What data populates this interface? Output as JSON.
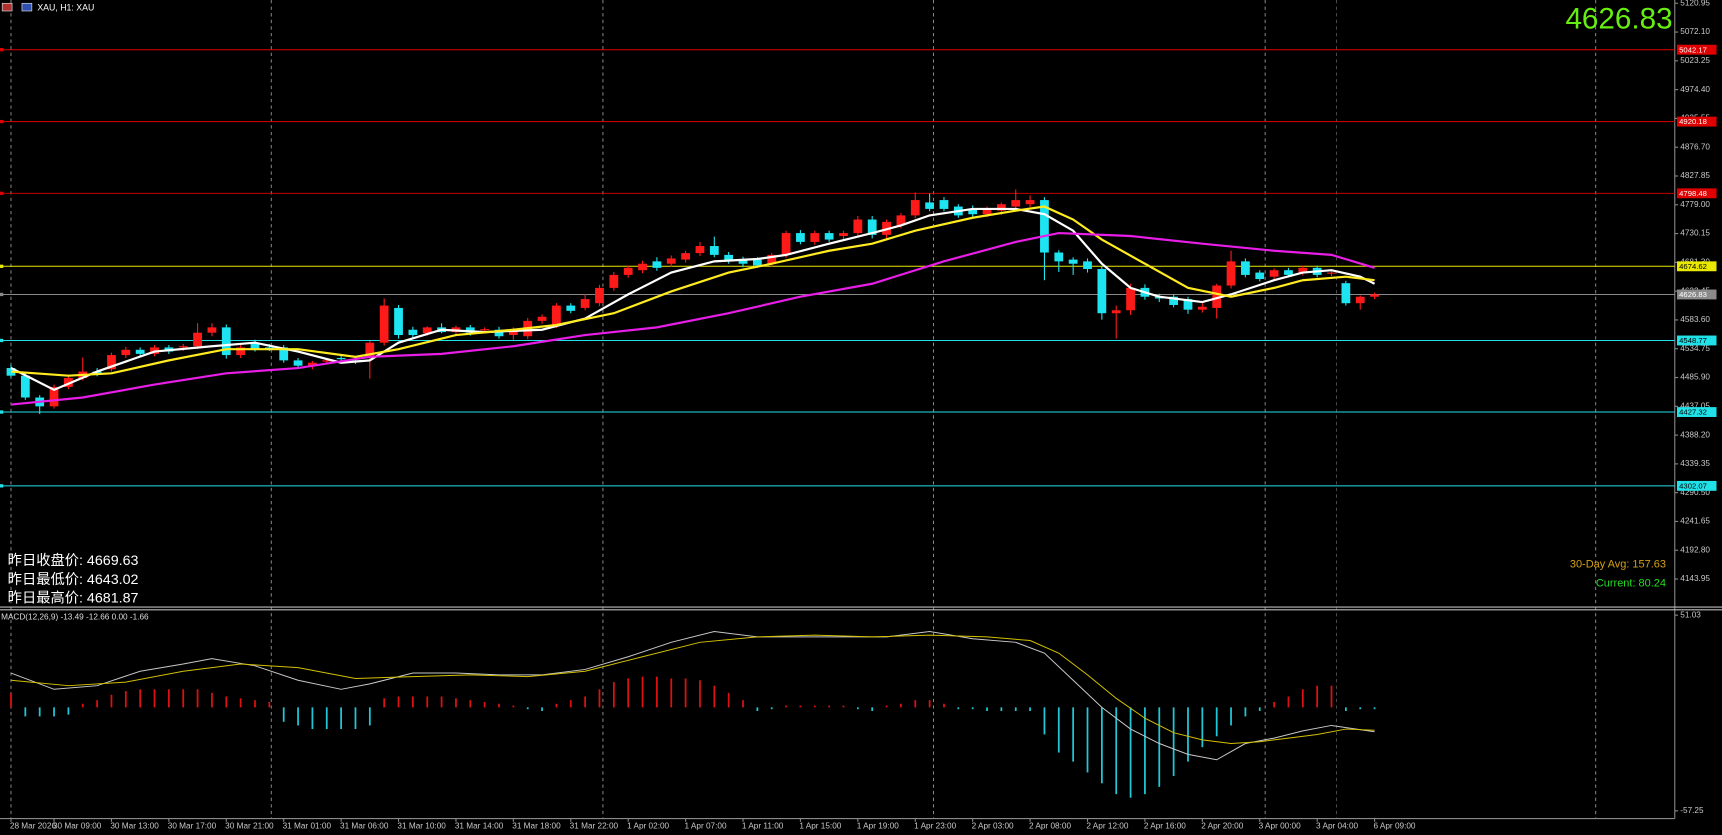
{
  "chart_data": [
    {
      "type": "candlestick",
      "title": "XAU, H1: XAU",
      "last_price": 4626.83,
      "up_color": "#ff1a1a",
      "down_color": "#1ee3f0",
      "categories": [
        "28 Mar 2026",
        null,
        null,
        "30 Mar 09:00",
        null,
        null,
        null,
        "30 Mar 13:00",
        null,
        null,
        null,
        "30 Mar 17:00",
        null,
        null,
        null,
        "30 Mar 21:00",
        null,
        null,
        null,
        "31 Mar 01:00",
        null,
        null,
        null,
        "31 Mar 06:00",
        null,
        null,
        null,
        "31 Mar 10:00",
        null,
        null,
        null,
        "31 Mar 14:00",
        null,
        null,
        null,
        "31 Mar 18:00",
        null,
        null,
        null,
        "31 Mar 22:00",
        null,
        null,
        null,
        "1 Apr 02:00",
        null,
        null,
        null,
        "1 Apr 07:00",
        null,
        null,
        null,
        "1 Apr 11:00",
        null,
        null,
        null,
        "1 Apr 15:00",
        null,
        null,
        null,
        "1 Apr 19:00",
        null,
        null,
        null,
        "1 Apr 23:00",
        null,
        null,
        null,
        "2 Apr 03:00",
        null,
        null,
        null,
        "2 Apr 08:00",
        null,
        null,
        null,
        "2 Apr 12:00",
        null,
        null,
        null,
        "2 Apr 16:00",
        null,
        null,
        null,
        "2 Apr 20:00",
        null,
        null,
        null,
        "3 Apr 00:00",
        null,
        null,
        null,
        "3 Apr 04:00",
        null,
        null,
        null,
        "6 Apr 09:00"
      ],
      "open": [
        4502,
        4489,
        4452,
        4437,
        4470,
        4485,
        4496,
        4500,
        4524,
        4533,
        4526,
        4537,
        4537,
        4539,
        4562,
        4571,
        4524,
        4545,
        4537,
        4537,
        4515,
        4506,
        4513,
        4519,
        4515,
        4521,
        4545,
        4604,
        4567,
        4561,
        4571,
        4563,
        4571,
        4566,
        4567,
        4558,
        4556,
        4582,
        4575,
        4608,
        4604,
        4612,
        4638,
        4660,
        4668,
        4683,
        4679,
        4686,
        4697,
        4709,
        4694,
        4686,
        4686,
        4679,
        4694,
        4731,
        4716,
        4731,
        4726,
        4731,
        4754,
        4728,
        4744,
        4761,
        4783,
        4787,
        4776,
        4772,
        4763,
        4769,
        4776,
        4780,
        4787,
        4698,
        4686,
        4683,
        4670,
        4595,
        4600,
        4638,
        4623,
        4623,
        4619,
        4601,
        4604,
        4642,
        4683,
        4664,
        4657,
        4668,
        4664,
        4672,
        4663,
        4646,
        4612,
        4623
      ],
      "high": [
        4507,
        4493,
        4456,
        4474,
        4489,
        4520,
        4502,
        4528,
        4538,
        4537,
        4541,
        4541,
        4543,
        4578,
        4578,
        4576,
        4541,
        4550,
        4543,
        4541,
        4519,
        4514,
        4518,
        4524,
        4520,
        4548,
        4620,
        4609,
        4572,
        4573,
        4578,
        4574,
        4575,
        4571,
        4572,
        4571,
        4587,
        4593,
        4612,
        4612,
        4627,
        4643,
        4665,
        4676,
        4684,
        4690,
        4693,
        4701,
        4716,
        4725,
        4699,
        4691,
        4690,
        4697,
        4735,
        4736,
        4735,
        4735,
        4735,
        4760,
        4760,
        4754,
        4765,
        4800,
        4798,
        4792,
        4780,
        4778,
        4776,
        4783,
        4805,
        4795,
        4792,
        4702,
        4690,
        4688,
        4674,
        4608,
        4645,
        4644,
        4628,
        4627,
        4623,
        4612,
        4645,
        4701,
        4688,
        4668,
        4671,
        4672,
        4676,
        4676,
        4668,
        4650,
        4625,
        4630
      ],
      "low": [
        4486,
        4448,
        4424,
        4433,
        4466,
        4481,
        4488,
        4496,
        4519,
        4522,
        4522,
        4526,
        4531,
        4534,
        4556,
        4518,
        4519,
        4530,
        4531,
        4511,
        4502,
        4500,
        4508,
        4512,
        4509,
        4484,
        4540,
        4552,
        4553,
        4557,
        4561,
        4559,
        4557,
        4561,
        4552,
        4550,
        4551,
        4577,
        4570,
        4595,
        4600,
        4607,
        4633,
        4655,
        4663,
        4667,
        4674,
        4681,
        4692,
        4690,
        4679,
        4673,
        4672,
        4674,
        4689,
        4712,
        4711,
        4716,
        4720,
        4726,
        4722,
        4722,
        4739,
        4756,
        4768,
        4768,
        4757,
        4759,
        4758,
        4762,
        4771,
        4775,
        4651,
        4665,
        4660,
        4664,
        4584,
        4552,
        4592,
        4618,
        4614,
        4605,
        4594,
        4596,
        4586,
        4637,
        4656,
        4649,
        4652,
        4656,
        4659,
        4656,
        4658,
        4608,
        4601,
        4619
      ],
      "close": [
        4489,
        4452,
        4437,
        4470,
        4485,
        4496,
        4492,
        4524,
        4533,
        4526,
        4537,
        4530,
        4539,
        4562,
        4571,
        4524,
        4537,
        4534,
        4536,
        4515,
        4506,
        4511,
        4515,
        4517,
        4514,
        4545,
        4608,
        4558,
        4558,
        4571,
        4563,
        4571,
        4562,
        4568,
        4556,
        4567,
        4582,
        4589,
        4608,
        4599,
        4619,
        4638,
        4660,
        4672,
        4679,
        4672,
        4688,
        4697,
        4709,
        4694,
        4683,
        4679,
        4676,
        4694,
        4731,
        4716,
        4731,
        4720,
        4731,
        4754,
        4728,
        4750,
        4761,
        4787,
        4772,
        4772,
        4761,
        4763,
        4772,
        4780,
        4787,
        4787,
        4698,
        4683,
        4679,
        4670,
        4595,
        4600,
        4638,
        4623,
        4620,
        4609,
        4601,
        4606,
        4642,
        4683,
        4660,
        4653,
        4668,
        4660,
        4672,
        4660,
        4664,
        4612,
        4623,
        4626.83
      ],
      "lines": [
        {
          "color": "#ffffff",
          "x": [
            0,
            3,
            6,
            10,
            14,
            17,
            20,
            23,
            25,
            27,
            30,
            33,
            37,
            40,
            43,
            46,
            49,
            52,
            54,
            57,
            60,
            62,
            64,
            67,
            70,
            72,
            74,
            76,
            78,
            80,
            83,
            85,
            88,
            90,
            92,
            94,
            95
          ],
          "values": [
            4502,
            4465,
            4496,
            4530,
            4539,
            4545,
            4530,
            4511,
            4515,
            4545,
            4567,
            4563,
            4567,
            4586,
            4627,
            4664,
            4683,
            4687,
            4694,
            4713,
            4731,
            4744,
            4761,
            4772,
            4772,
            4763,
            4735,
            4679,
            4638,
            4623,
            4614,
            4627,
            4651,
            4664,
            4668,
            4657,
            4645
          ]
        },
        {
          "color": "#ffeb1f",
          "x": [
            0,
            4,
            7,
            11,
            15,
            20,
            24,
            27,
            31,
            35,
            38,
            42,
            46,
            50,
            53,
            57,
            60,
            63,
            67,
            70,
            72,
            74,
            76,
            79,
            82,
            85,
            88,
            90,
            93,
            95
          ],
          "values": [
            4496,
            4489,
            4493,
            4515,
            4534,
            4534,
            4521,
            4534,
            4558,
            4567,
            4575,
            4595,
            4632,
            4664,
            4679,
            4701,
            4713,
            4735,
            4757,
            4769,
            4776,
            4754,
            4720,
            4679,
            4638,
            4623,
            4638,
            4651,
            4657,
            4651
          ]
        },
        {
          "color": "#e81ee8",
          "x": [
            0,
            5,
            10,
            15,
            20,
            25,
            30,
            35,
            40,
            45,
            50,
            55,
            60,
            65,
            70,
            73,
            78,
            83,
            88,
            92,
            95
          ],
          "values": [
            4440,
            4452,
            4474,
            4493,
            4502,
            4521,
            4526,
            4539,
            4558,
            4571,
            4595,
            4623,
            4645,
            4683,
            4716,
            4731,
            4726,
            4713,
            4701,
            4694,
            4672
          ]
        }
      ],
      "levels": [
        {
          "value": 5042.17,
          "color": "#e00000"
        },
        {
          "value": 4920.18,
          "color": "#e00000"
        },
        {
          "value": 4798.48,
          "color": "#e00000"
        },
        {
          "value": 4674.62,
          "color": "#e8e800"
        },
        {
          "value": 4626.83,
          "color": "#8a8a8a"
        },
        {
          "value": 4548.77,
          "color": "#20e0e8"
        },
        {
          "value": 4427.32,
          "color": "#20e0e8"
        },
        {
          "value": 4302.07,
          "color": "#20e0e8"
        }
      ],
      "ylim": [
        4097.4,
        5126.5
      ],
      "yticks": [
        5120.95,
        {
          "value": 5072.1,
          "label": "5072.10"
        },
        5023.25,
        {
          "value": 4974.4,
          "label": "4974.40"
        },
        4925.55,
        {
          "value": 4876.7,
          "label": "4876.70"
        },
        4827.85,
        {
          "value": 4779,
          "label": "4779.00"
        },
        4730.15,
        {
          "value": 4681.3,
          "label": "4681.30"
        },
        4632.45,
        {
          "value": 4583.6,
          "label": "4583.60"
        },
        4534.75,
        {
          "value": 4485.9,
          "label": "4485.90"
        },
        4437.05,
        {
          "value": 4388.2,
          "label": "4388.20"
        },
        4339.35,
        {
          "value": 4290.5,
          "label": "4290.50"
        },
        4241.65,
        {
          "value": 4192.8,
          "label": "4192.80"
        },
        4143.95
      ],
      "annotations": [
        {
          "text": "昨日收盘价: 4669.63",
          "color": "#ffffff"
        },
        {
          "text": "昨日最低价: 4643.02",
          "color": "#ffffff"
        },
        {
          "text": "昨日最高价: 4681.87",
          "color": "#ffffff"
        },
        {
          "text": "30-Day Avg: 157.63",
          "color": "#d4a017"
        },
        {
          "text": "Current: 80.24",
          "color": "#22dd22"
        }
      ]
    },
    {
      "type": "macd",
      "title": "MACD(12,26,9) -13.49 -12.66 0.00 -1.66",
      "up_color": "#e01010",
      "down_color": "#1ec8d8",
      "histogram": [
        8,
        -5,
        -5,
        -5,
        -4,
        2,
        4,
        7,
        9,
        10,
        10,
        10,
        10,
        10,
        8,
        6,
        5,
        4,
        3,
        -8,
        -10,
        -12,
        -12,
        -12,
        -12,
        -10,
        5,
        6,
        6,
        6,
        6,
        5,
        4,
        3,
        2,
        1,
        -1,
        -2,
        2,
        4,
        6,
        10,
        14,
        16,
        17,
        17,
        16,
        16,
        15,
        12,
        8,
        4,
        -2,
        -1,
        1,
        1,
        1,
        1,
        1,
        -1,
        -2,
        1,
        2,
        4,
        4,
        2,
        -1,
        -1,
        -2,
        -2,
        -2,
        -2,
        -15,
        -25,
        -30,
        -36,
        -42,
        -48,
        -50,
        -48,
        -44,
        -38,
        -30,
        -22,
        -16,
        -10,
        -5,
        -2,
        3,
        6,
        10,
        12,
        12,
        -2,
        -1,
        -1
      ],
      "series": [
        {
          "color": "#c8c8c8",
          "x": [
            0,
            3,
            6,
            9,
            12,
            14,
            17,
            20,
            23,
            25,
            28,
            31,
            34,
            37,
            40,
            43,
            46,
            49,
            52,
            55,
            58,
            61,
            64,
            67,
            70,
            72,
            74,
            76,
            78,
            80,
            82,
            84,
            86,
            88,
            90,
            92,
            95
          ],
          "values": [
            19,
            10,
            12,
            20,
            24,
            27,
            23,
            15,
            10,
            13,
            19,
            19,
            18,
            18,
            21,
            28,
            36,
            42,
            39,
            39,
            39,
            39,
            42,
            38,
            36,
            30,
            15,
            0,
            -12,
            -20,
            -26,
            -29,
            -20,
            -17,
            -13,
            -10,
            -13.49
          ]
        },
        {
          "color": "#d4c000",
          "x": [
            0,
            4,
            8,
            12,
            16,
            20,
            24,
            28,
            32,
            36,
            40,
            44,
            48,
            52,
            56,
            60,
            64,
            68,
            71,
            73,
            75,
            77,
            79,
            81,
            83,
            85,
            87,
            89,
            91,
            93,
            95
          ],
          "values": [
            15,
            12,
            14,
            20,
            24,
            22,
            16,
            17,
            18,
            17,
            20,
            28,
            36,
            39,
            40,
            39,
            40,
            39,
            37,
            30,
            18,
            5,
            -6,
            -14,
            -18,
            -20,
            -19,
            -17,
            -15,
            -12,
            -12.66
          ]
        }
      ],
      "ylim": [
        -61.5,
        53.4
      ],
      "yticks": [
        51.03,
        -57.25
      ]
    }
  ]
}
